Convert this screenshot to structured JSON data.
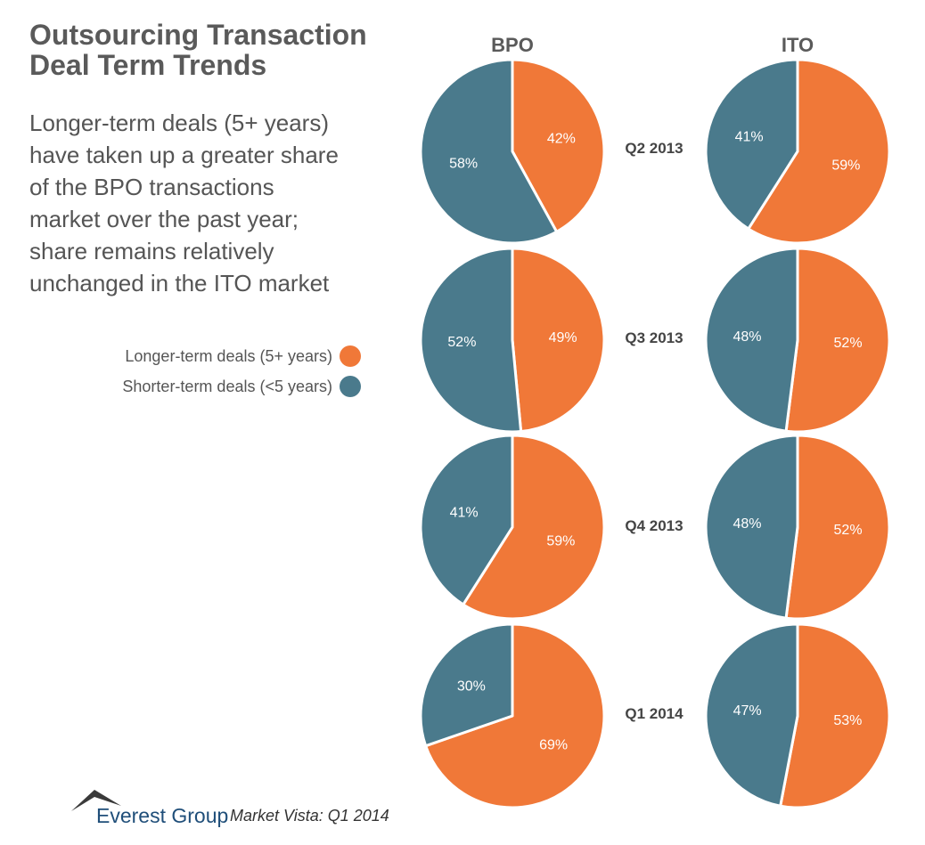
{
  "title_line1": "Outsourcing Transaction",
  "title_line2": "Deal Term Trends",
  "subtitle_lines": [
    "Longer-term deals (5+ years)",
    "have taken up a greater share",
    "of the BPO transactions",
    "market over the past year;",
    "share remains relatively",
    "unchanged in the ITO market"
  ],
  "legend": [
    {
      "label": "Longer-term deals (5+ years)",
      "color": "#F07838"
    },
    {
      "label": "Shorter-term deals (<5 years)",
      "color": "#4A7A8C"
    }
  ],
  "footer": {
    "brand": "Everest Group",
    "source": "Market Vista: Q1 2014"
  },
  "chart_data": {
    "type": "pie",
    "columns": [
      "BPO",
      "ITO"
    ],
    "periods": [
      "Q2 2013",
      "Q3 2013",
      "Q4 2013",
      "Q1 2014"
    ],
    "series": [
      {
        "name": "Longer-term deals (5+ years)",
        "color": "#F07838",
        "BPO": [
          42,
          49,
          59,
          69
        ],
        "ITO": [
          59,
          52,
          52,
          53
        ]
      },
      {
        "name": "Shorter-term deals (<5 years)",
        "color": "#4A7A8C",
        "BPO": [
          58,
          52,
          41,
          30
        ],
        "ITO": [
          41,
          48,
          48,
          47
        ]
      }
    ],
    "value_suffix": "%"
  }
}
